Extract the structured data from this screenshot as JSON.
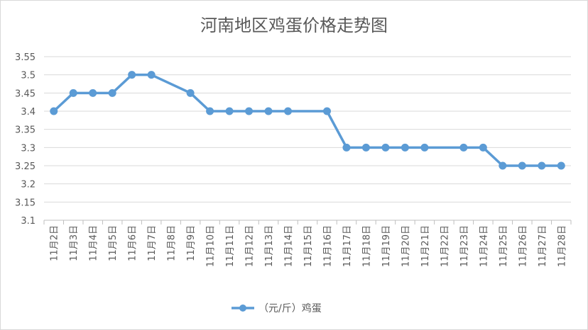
{
  "chart_data": {
    "type": "line",
    "title": "河南地区鸡蛋价格走势图",
    "xlabel": "",
    "ylabel": "",
    "ylim": [
      3.1,
      3.55
    ],
    "yticks": [
      "3.1",
      "3.15",
      "3.2",
      "3.25",
      "3.3",
      "3.35",
      "3.4",
      "3.45",
      "3.5",
      "3.55"
    ],
    "categories": [
      "11月2日",
      "11月3日",
      "11月4日",
      "11月5日",
      "11月6日",
      "11月7日",
      "11月8日",
      "11月9日",
      "11月10日",
      "11月11日",
      "11月12日",
      "11月13日",
      "11月14日",
      "11月15日",
      "11月16日",
      "11月17日",
      "11月18日",
      "11月19日",
      "11月20日",
      "11月21日",
      "11月22日",
      "11月23日",
      "11月24日",
      "11月25日",
      "11月26日",
      "11月27日",
      "11月28日"
    ],
    "series": [
      {
        "name": "（元/斤）鸡蛋",
        "color": "#5b9bd5",
        "values": [
          3.4,
          3.45,
          3.45,
          3.45,
          3.5,
          3.5,
          null,
          3.45,
          3.4,
          3.4,
          3.4,
          3.4,
          3.4,
          null,
          3.4,
          3.3,
          3.3,
          3.3,
          3.3,
          3.3,
          null,
          3.3,
          3.3,
          3.25,
          3.25,
          3.25,
          3.25
        ]
      }
    ],
    "grid": true,
    "legend": "bottom"
  }
}
